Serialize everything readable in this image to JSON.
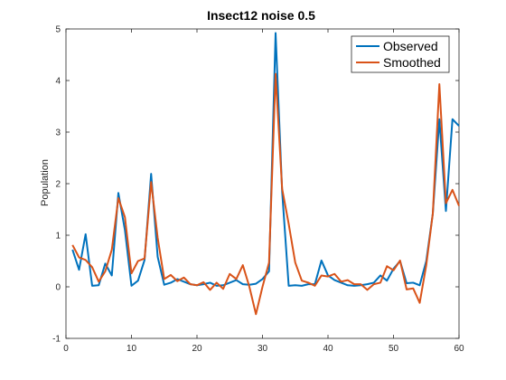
{
  "chart_data": {
    "type": "line",
    "title": "Insect12 noise 0.5",
    "xlabel": "",
    "ylabel": "Population",
    "xlim": [
      0,
      60
    ],
    "ylim": [
      -1,
      5
    ],
    "x_ticks": [
      0,
      10,
      20,
      30,
      40,
      50,
      60
    ],
    "y_ticks": [
      -1,
      0,
      1,
      2,
      3,
      4,
      5
    ],
    "grid": false,
    "legend_position": "top-right",
    "x": [
      1,
      2,
      3,
      4,
      5,
      6,
      7,
      8,
      9,
      10,
      11,
      12,
      13,
      14,
      15,
      16,
      17,
      18,
      19,
      20,
      21,
      22,
      23,
      24,
      25,
      26,
      27,
      28,
      29,
      30,
      31,
      32,
      33,
      34,
      35,
      36,
      37,
      38,
      39,
      40,
      41,
      42,
      43,
      44,
      45,
      46,
      47,
      48,
      49,
      50,
      51,
      52,
      53,
      54,
      55,
      56,
      57,
      58,
      59,
      60
    ],
    "series": [
      {
        "name": "Observed",
        "color": "#0072BD",
        "values": [
          0.72,
          0.33,
          1.02,
          0.02,
          0.03,
          0.45,
          0.22,
          1.82,
          1.1,
          0.02,
          0.12,
          0.52,
          2.19,
          0.58,
          0.04,
          0.08,
          0.15,
          0.1,
          0.05,
          0.03,
          0.05,
          0.08,
          0.02,
          0.03,
          0.08,
          0.13,
          0.05,
          0.04,
          0.06,
          0.15,
          0.3,
          4.92,
          1.85,
          0.02,
          0.03,
          0.02,
          0.05,
          0.05,
          0.51,
          0.22,
          0.13,
          0.08,
          0.03,
          0.02,
          0.03,
          0.05,
          0.08,
          0.22,
          0.12,
          0.35,
          0.5,
          0.07,
          0.08,
          0.03,
          0.5,
          1.42,
          3.25,
          1.47,
          3.25,
          3.12
        ]
      },
      {
        "name": "Smoothed",
        "color": "#D95319",
        "values": [
          0.81,
          0.57,
          0.52,
          0.38,
          0.1,
          0.3,
          0.72,
          1.72,
          1.35,
          0.26,
          0.5,
          0.55,
          2.03,
          0.95,
          0.15,
          0.23,
          0.11,
          0.18,
          0.05,
          0.03,
          0.09,
          -0.06,
          0.08,
          -0.04,
          0.25,
          0.15,
          0.42,
          0.0,
          -0.53,
          0.0,
          0.47,
          4.13,
          1.9,
          1.22,
          0.47,
          0.12,
          0.08,
          0.02,
          0.22,
          0.2,
          0.25,
          0.1,
          0.13,
          0.05,
          0.05,
          -0.06,
          0.05,
          0.08,
          0.4,
          0.32,
          0.51,
          -0.05,
          -0.03,
          -0.31,
          0.42,
          1.42,
          3.93,
          1.62,
          1.88,
          1.57
        ]
      }
    ]
  }
}
